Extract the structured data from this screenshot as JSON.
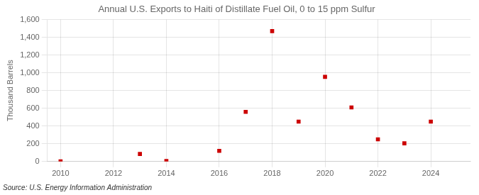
{
  "chart_data": {
    "type": "scatter",
    "title": "Annual U.S. Exports to Haiti of Distillate Fuel Oil, 0 to 15 ppm Sulfur",
    "ylabel": "Thousand Barrels",
    "annotation": "Source: U.S. Energy Information Administration",
    "x": [
      2010,
      2013,
      2014,
      2016,
      2017,
      2018,
      2019,
      2020,
      2021,
      2022,
      2023,
      2024
    ],
    "values": [
      2,
      85,
      5,
      120,
      560,
      1470,
      450,
      955,
      610,
      250,
      205,
      450
    ],
    "color": "#cc0000",
    "marker": "square",
    "xlim": [
      2009.5,
      2025.5
    ],
    "xticks": [
      2010,
      2012,
      2014,
      2016,
      2018,
      2020,
      2022,
      2024
    ],
    "ylim": [
      0,
      1600
    ],
    "yticks": [
      0,
      200,
      400,
      600,
      800,
      {
        "value": 1000,
        "label": "1,000"
      },
      {
        "value": 1200,
        "label": "1,200"
      },
      {
        "value": 1400,
        "label": "1,400"
      },
      {
        "value": 1600,
        "label": "1,600"
      }
    ],
    "grid": true
  }
}
